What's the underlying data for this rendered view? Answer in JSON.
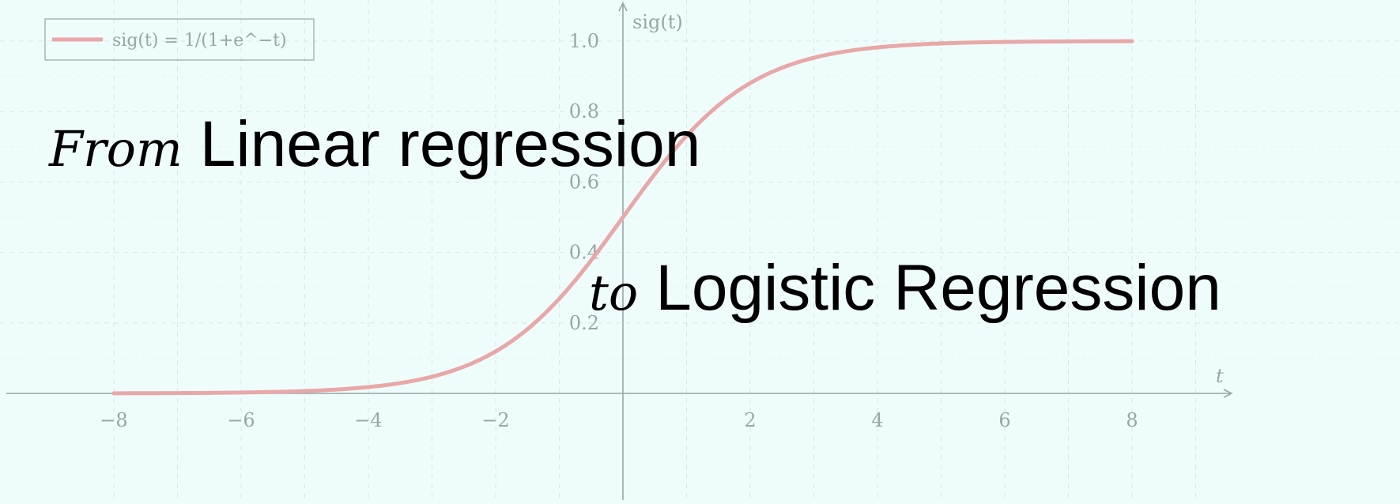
{
  "overlay": {
    "line1_hand": "From",
    "line1_text": "Linear regression",
    "line2_hand": "to",
    "line2_text": "Logistic Regression"
  },
  "colors": {
    "background": "#effcfc",
    "curve": "#e8a8a8",
    "axis": "#9aa5a5",
    "grid": "#d8e6e6",
    "tick_text": "#9aa5a5"
  },
  "chart_data": {
    "type": "line",
    "xlabel": "t",
    "ylabel": "sig(t)",
    "xlim": [
      -8.5,
      9.5
    ],
    "ylim": [
      -0.1,
      1.1
    ],
    "xticks": [
      -8,
      -6,
      -4,
      -2,
      2,
      4,
      6,
      8
    ],
    "xtick_labels": [
      "−8",
      "−6",
      "−4",
      "−2",
      "2",
      "4",
      "6",
      "8"
    ],
    "yticks": [
      0.2,
      0.4,
      0.6,
      0.8,
      1.0
    ],
    "ytick_labels": [
      "0.2",
      "0.4",
      "0.6",
      "0.8",
      "1.0"
    ],
    "grid": true,
    "legend_position": "top-left",
    "series": [
      {
        "name": "sig(t) = 1/(1+e^−t)",
        "x": [
          -8,
          -7,
          -6,
          -5,
          -4,
          -3,
          -2,
          -1.5,
          -1,
          -0.5,
          0,
          0.5,
          1,
          1.5,
          2,
          3,
          4,
          5,
          6,
          7,
          8
        ],
        "y": [
          0.0003,
          0.0009,
          0.0025,
          0.0067,
          0.018,
          0.047,
          0.119,
          0.182,
          0.269,
          0.378,
          0.5,
          0.622,
          0.731,
          0.818,
          0.881,
          0.953,
          0.982,
          0.993,
          0.9975,
          0.9991,
          0.9997
        ]
      }
    ]
  }
}
